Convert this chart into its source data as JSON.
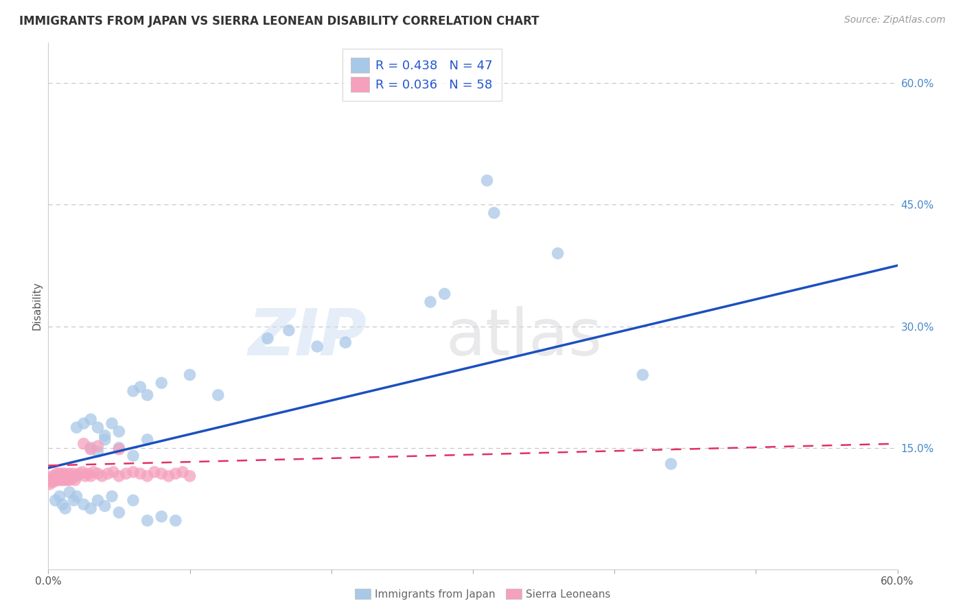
{
  "title": "IMMIGRANTS FROM JAPAN VS SIERRA LEONEAN DISABILITY CORRELATION CHART",
  "source": "Source: ZipAtlas.com",
  "xlabel_japan": "Immigrants from Japan",
  "xlabel_sierra": "Sierra Leoneans",
  "ylabel": "Disability",
  "xlim": [
    0.0,
    0.6
  ],
  "ylim": [
    0.0,
    0.65
  ],
  "xticks_shown": [
    0.0,
    0.6
  ],
  "xtick_labels_shown": [
    "0.0%",
    "60.0%"
  ],
  "xticks_minor": [
    0.1,
    0.2,
    0.3,
    0.4,
    0.5
  ],
  "yticks_right": [
    0.15,
    0.3,
    0.45,
    0.6
  ],
  "ytick_labels_right": [
    "15.0%",
    "30.0%",
    "45.0%",
    "60.0%"
  ],
  "yticks_grid": [
    0.15,
    0.3,
    0.45,
    0.6
  ],
  "japan_R": 0.438,
  "japan_N": 47,
  "sierra_R": 0.036,
  "sierra_N": 58,
  "japan_color": "#a8c8e8",
  "sierra_color": "#f5a0bc",
  "japan_line_color": "#1a50c0",
  "sierra_line_color": "#e03060",
  "background_color": "#ffffff",
  "grid_color": "#c8c8c8",
  "japan_line_x0": 0.0,
  "japan_line_y0": 0.125,
  "japan_line_x1": 0.6,
  "japan_line_y1": 0.375,
  "sierra_line_x0": 0.0,
  "sierra_line_y0": 0.128,
  "sierra_line_x1": 0.6,
  "sierra_line_y1": 0.155,
  "japan_x": [
    0.005,
    0.008,
    0.01,
    0.012,
    0.015,
    0.018,
    0.02,
    0.025,
    0.03,
    0.035,
    0.04,
    0.045,
    0.05,
    0.06,
    0.07,
    0.08,
    0.09,
    0.03,
    0.035,
    0.04,
    0.05,
    0.06,
    0.07,
    0.06,
    0.065,
    0.07,
    0.08,
    0.1,
    0.12,
    0.155,
    0.17,
    0.19,
    0.21,
    0.27,
    0.28,
    0.31,
    0.315,
    0.36,
    0.42,
    0.44,
    0.02,
    0.025,
    0.03,
    0.035,
    0.04,
    0.045,
    0.05
  ],
  "japan_y": [
    0.085,
    0.09,
    0.08,
    0.075,
    0.095,
    0.085,
    0.09,
    0.08,
    0.075,
    0.085,
    0.078,
    0.09,
    0.07,
    0.085,
    0.06,
    0.065,
    0.06,
    0.15,
    0.145,
    0.16,
    0.15,
    0.14,
    0.16,
    0.22,
    0.225,
    0.215,
    0.23,
    0.24,
    0.215,
    0.285,
    0.295,
    0.275,
    0.28,
    0.33,
    0.34,
    0.48,
    0.44,
    0.39,
    0.24,
    0.13,
    0.175,
    0.18,
    0.185,
    0.175,
    0.165,
    0.18,
    0.17
  ],
  "sierra_x": [
    0.001,
    0.002,
    0.002,
    0.003,
    0.003,
    0.004,
    0.004,
    0.005,
    0.005,
    0.006,
    0.006,
    0.007,
    0.007,
    0.008,
    0.008,
    0.009,
    0.009,
    0.01,
    0.01,
    0.011,
    0.011,
    0.012,
    0.012,
    0.013,
    0.013,
    0.014,
    0.015,
    0.015,
    0.016,
    0.017,
    0.018,
    0.019,
    0.02,
    0.022,
    0.024,
    0.026,
    0.028,
    0.03,
    0.032,
    0.035,
    0.038,
    0.042,
    0.046,
    0.05,
    0.055,
    0.06,
    0.065,
    0.07,
    0.075,
    0.08,
    0.085,
    0.09,
    0.095,
    0.1,
    0.025,
    0.03,
    0.035,
    0.05
  ],
  "sierra_y": [
    0.105,
    0.108,
    0.112,
    0.11,
    0.115,
    0.108,
    0.112,
    0.11,
    0.115,
    0.112,
    0.118,
    0.11,
    0.115,
    0.112,
    0.118,
    0.11,
    0.115,
    0.112,
    0.118,
    0.11,
    0.115,
    0.112,
    0.118,
    0.11,
    0.115,
    0.112,
    0.118,
    0.11,
    0.115,
    0.112,
    0.118,
    0.11,
    0.115,
    0.118,
    0.12,
    0.115,
    0.118,
    0.115,
    0.12,
    0.118,
    0.115,
    0.118,
    0.12,
    0.115,
    0.118,
    0.12,
    0.118,
    0.115,
    0.12,
    0.118,
    0.115,
    0.118,
    0.12,
    0.115,
    0.155,
    0.148,
    0.152,
    0.148
  ]
}
